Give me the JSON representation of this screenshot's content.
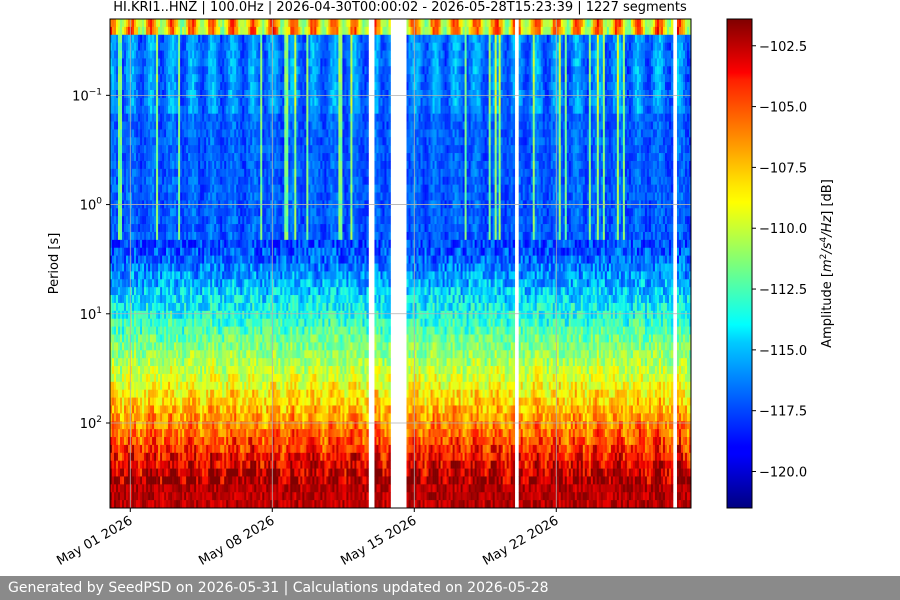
{
  "chart_data": {
    "type": "heatmap",
    "title": "HI.KRI1..HNZ | 100.0Hz | 2026-04-30T00:00:02 - 2026-05-28T15:23:39 | 1227 segments",
    "xlabel": "",
    "ylabel": "Period [s]",
    "x_scale": "date",
    "y_scale": "log",
    "y_inverted": true,
    "x_range": [
      "2026-04-30",
      "2026-05-28"
    ],
    "y_range_s": [
      0.02,
      600
    ],
    "x_tick_labels": [
      "May 01 2026",
      "May 08 2026",
      "May 15 2026",
      "May 22 2026"
    ],
    "x_ticks": [
      "2026-05-01",
      "2026-05-08",
      "2026-05-15",
      "2026-05-22"
    ],
    "y_tick_labels": [
      {
        "base": "10",
        "exp": "−1",
        "value": 0.1
      },
      {
        "base": "10",
        "exp": "0",
        "value": 1
      },
      {
        "base": "10",
        "exp": "1",
        "value": 10
      },
      {
        "base": "10",
        "exp": "2",
        "value": 100
      }
    ],
    "grid": true,
    "colormap": "jet",
    "colorbar": {
      "label_prefix": "Amplitude [",
      "label_unit_m": "m",
      "label_unit_m_exp": "2",
      "label_unit_s": "/s",
      "label_unit_s_exp": "4",
      "label_unit_tail": "/Hz",
      "label_suffix": "] [dB]",
      "min": -121.5,
      "max": -101.4,
      "ticks": [
        {
          "value": -102.5,
          "label": "−102.5"
        },
        {
          "value": -105.0,
          "label": "−105.0"
        },
        {
          "value": -107.5,
          "label": "−107.5"
        },
        {
          "value": -110.0,
          "label": "−110.0"
        },
        {
          "value": -112.5,
          "label": "−112.5"
        },
        {
          "value": -115.0,
          "label": "−115.0"
        },
        {
          "value": -117.5,
          "label": "−117.5"
        },
        {
          "value": -120.0,
          "label": "−120.0"
        }
      ]
    },
    "data_gaps": [
      {
        "start": "2026-05-12T18:00",
        "end": "2026-05-13T02:00"
      },
      {
        "start": "2026-05-13T19:00",
        "end": "2026-05-14T15:00"
      },
      {
        "start": "2026-05-19T23:00",
        "end": "2026-05-20T04:00"
      },
      {
        "start": "2026-05-27T18:00",
        "end": "2026-05-27T23:00"
      }
    ],
    "daily_noise_cycle": true
  },
  "footer": {
    "text": "Generated by SeedPSD on 2026-05-31 | Calculations updated on 2026-05-28"
  }
}
